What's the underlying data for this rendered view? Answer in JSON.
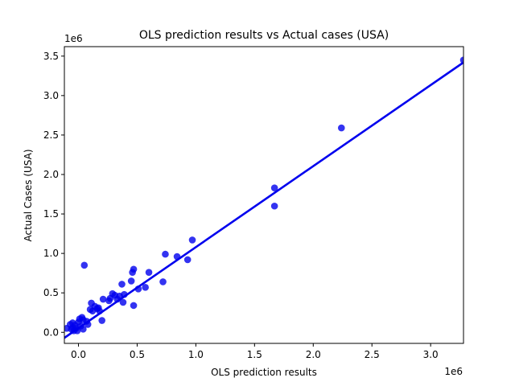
{
  "chart_data": {
    "type": "scatter",
    "title": "OLS prediction results vs Actual cases (USA)",
    "xlabel": "OLS prediction results",
    "ylabel": "Actual Cases (USA)",
    "x_offset_label": "1e6",
    "y_offset_label": "1e6",
    "xlim": [
      -0.12,
      3.28
    ],
    "ylim": [
      -0.14,
      3.62
    ],
    "x_ticks": [
      0.0,
      0.5,
      1.0,
      1.5,
      2.0,
      2.5,
      3.0
    ],
    "x_tick_labels": [
      "0.0",
      "0.5",
      "1.0",
      "1.5",
      "2.0",
      "2.5",
      "3.0"
    ],
    "y_ticks": [
      0.0,
      0.5,
      1.0,
      1.5,
      2.0,
      2.5,
      3.0,
      3.5
    ],
    "y_tick_labels": [
      "0.0",
      "0.5",
      "1.0",
      "1.5",
      "2.0",
      "2.5",
      "3.0",
      "3.5"
    ],
    "grid": false,
    "point_color": "#0000ee",
    "line_color": "#0000ee",
    "regression_line": {
      "x": [
        -0.12,
        3.28
      ],
      "y": [
        -0.07,
        3.42
      ]
    },
    "points": [
      [
        -0.1,
        0.05
      ],
      [
        -0.07,
        0.1
      ],
      [
        -0.06,
        0.04
      ],
      [
        -0.05,
        0.12
      ],
      [
        -0.05,
        0.06
      ],
      [
        -0.04,
        0.02
      ],
      [
        -0.03,
        0.09
      ],
      [
        -0.02,
        0.05
      ],
      [
        -0.01,
        0.02
      ],
      [
        0.0,
        0.13
      ],
      [
        0.01,
        0.17
      ],
      [
        0.02,
        0.08
      ],
      [
        0.03,
        0.19
      ],
      [
        0.04,
        0.16
      ],
      [
        0.04,
        0.04
      ],
      [
        0.05,
        0.85
      ],
      [
        0.07,
        0.14
      ],
      [
        0.08,
        0.1
      ],
      [
        0.1,
        0.29
      ],
      [
        0.11,
        0.37
      ],
      [
        0.12,
        0.27
      ],
      [
        0.14,
        0.33
      ],
      [
        0.16,
        0.3
      ],
      [
        0.17,
        0.31
      ],
      [
        0.18,
        0.27
      ],
      [
        0.2,
        0.15
      ],
      [
        0.21,
        0.42
      ],
      [
        0.26,
        0.4
      ],
      [
        0.27,
        0.43
      ],
      [
        0.29,
        0.49
      ],
      [
        0.31,
        0.47
      ],
      [
        0.33,
        0.42
      ],
      [
        0.35,
        0.46
      ],
      [
        0.37,
        0.61
      ],
      [
        0.38,
        0.38
      ],
      [
        0.39,
        0.48
      ],
      [
        0.45,
        0.65
      ],
      [
        0.46,
        0.76
      ],
      [
        0.47,
        0.8
      ],
      [
        0.47,
        0.34
      ],
      [
        0.51,
        0.55
      ],
      [
        0.57,
        0.57
      ],
      [
        0.6,
        0.76
      ],
      [
        0.72,
        0.64
      ],
      [
        0.74,
        0.99
      ],
      [
        0.84,
        0.96
      ],
      [
        0.93,
        0.92
      ],
      [
        0.97,
        1.17
      ],
      [
        1.67,
        1.83
      ],
      [
        1.67,
        1.6
      ],
      [
        2.24,
        2.59
      ],
      [
        3.28,
        3.45
      ]
    ]
  }
}
